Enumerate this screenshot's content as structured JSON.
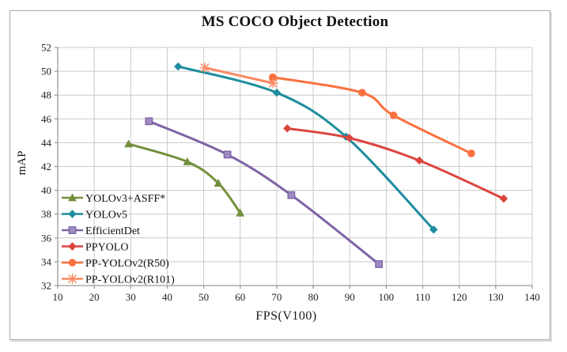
{
  "figure": {
    "title": "MS COCO Object Detection",
    "xlabel": "FPS(V100)",
    "ylabel": "mAP"
  },
  "chart_data": {
    "type": "line",
    "title": "MS COCO Object Detection",
    "xlabel": "FPS(V100)",
    "ylabel": "mAP",
    "xlim": [
      10,
      140
    ],
    "ylim": [
      32,
      52
    ],
    "xticks": [
      10,
      20,
      30,
      40,
      50,
      60,
      70,
      80,
      90,
      100,
      110,
      120,
      130,
      140
    ],
    "yticks": [
      32,
      34,
      36,
      38,
      40,
      42,
      44,
      46,
      48,
      50,
      52
    ],
    "grid": true,
    "legend_position": "inside-bottom-left",
    "colors": {
      "grid": "#c9c9c9",
      "axis": "#9a9a9a",
      "text": "#222222"
    },
    "series": [
      {
        "name": "YOLOv3+ASFF*",
        "color": "#72903B",
        "marker": "triangle",
        "points": [
          [
            29.4,
            43.9
          ],
          [
            45.5,
            42.4
          ],
          [
            54,
            40.6
          ],
          [
            60,
            38.1
          ]
        ]
      },
      {
        "name": "YOLOv5",
        "color": "#1D8C9E",
        "marker": "diamond",
        "points": [
          [
            43,
            50.4
          ],
          [
            70,
            48.2
          ],
          [
            89,
            44.5
          ],
          [
            113,
            36.7
          ]
        ]
      },
      {
        "name": "EfficientDet",
        "color": "#7E63A5",
        "marker": "square",
        "marker_fill": "#9F8CC3",
        "points": [
          [
            35,
            45.8
          ],
          [
            56.5,
            43.0
          ],
          [
            74,
            39.6
          ],
          [
            98,
            33.8
          ]
        ]
      },
      {
        "name": "PPYOLO",
        "color": "#DC453E",
        "marker": "diamond",
        "points": [
          [
            72.9,
            45.2
          ],
          [
            89.9,
            44.4
          ],
          [
            109.1,
            42.5
          ],
          [
            132.2,
            39.3
          ]
        ]
      },
      {
        "name": "PP-YOLOv2(R50)",
        "color": "#F9703E",
        "marker": "circle",
        "points": [
          [
            68.9,
            49.5
          ],
          [
            93.4,
            48.2
          ],
          [
            102,
            46.3
          ],
          [
            123.3,
            43.1
          ]
        ]
      },
      {
        "name": "PP-YOLOv2(R101)",
        "color": "#FA8A63",
        "marker": "asterisk",
        "points": [
          [
            50.3,
            50.3
          ],
          [
            69,
            49.0
          ]
        ]
      }
    ]
  }
}
